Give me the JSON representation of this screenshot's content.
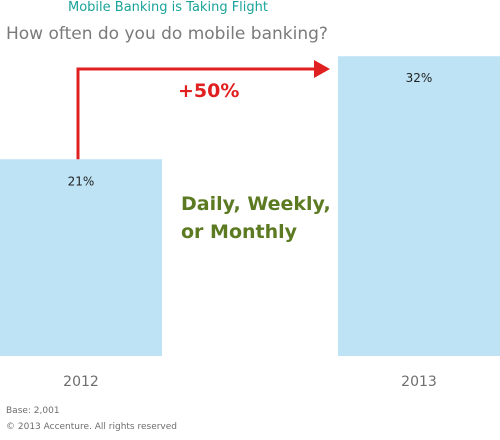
{
  "header": {
    "title": "Mobile Banking is Taking Flight",
    "subtitle": "How often do you do mobile banking?"
  },
  "colors": {
    "bar": "#bde3f5",
    "arrow": "#e02020",
    "title": "#1aa39a",
    "annotation": "#5c7a22"
  },
  "chart_data": {
    "type": "bar",
    "categories": [
      "2012",
      "2013"
    ],
    "values": [
      21,
      32
    ],
    "value_labels": [
      "21%",
      "32%"
    ],
    "title": "Mobile Banking is Taking Flight",
    "subtitle": "How often do you do mobile banking?",
    "xlabel": "",
    "ylabel": "",
    "ylim": [
      0,
      38
    ],
    "grid": false,
    "legend": "none",
    "annotations": [
      {
        "text": "+50%",
        "type": "growth-arrow",
        "from": "2012",
        "to": "2013"
      },
      {
        "text": "Daily, Weekly, or Monthly",
        "type": "note"
      }
    ]
  },
  "annotation": {
    "growth": "+50%",
    "line1": "Daily, Weekly,",
    "line2": "or Monthly"
  },
  "footnotes": {
    "base": "Base: 2,001",
    "copyright": "© 2013 Accenture.  All rights reserved"
  }
}
